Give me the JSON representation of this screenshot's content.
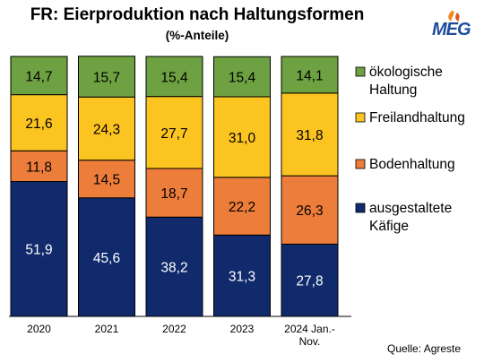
{
  "header": {
    "title": "FR: Eierproduktion nach Haltungsformen",
    "subtitle": "(%-Anteile)",
    "logo_text": "MEG"
  },
  "footer": {
    "source": "Quelle: Agreste"
  },
  "chart_data": {
    "type": "bar",
    "stacked": true,
    "categories": [
      "2020",
      "2021",
      "2022",
      "2023",
      "2024 Jan.-\nNov."
    ],
    "ylim": [
      0,
      100
    ],
    "grid": false,
    "legend_position": "right",
    "series": [
      {
        "name": "ausgestaltete Käfige",
        "color": "#112a6b",
        "values": [
          51.9,
          45.6,
          38.2,
          31.3,
          27.8
        ],
        "labels": [
          "51,9",
          "45,6",
          "38,2",
          "31,3",
          "27,8"
        ],
        "label_color": "#ffffff"
      },
      {
        "name": "Bodenhaltung",
        "color": "#ec7d3b",
        "values": [
          11.8,
          14.5,
          18.7,
          22.2,
          26.3
        ],
        "labels": [
          "11,8",
          "14,5",
          "18,7",
          "22,2",
          "26,3"
        ],
        "label_color": "#000000"
      },
      {
        "name": "Freilandhaltung",
        "color": "#fcc420",
        "values": [
          21.6,
          24.3,
          27.7,
          31.0,
          31.8
        ],
        "labels": [
          "21,6",
          "24,3",
          "27,7",
          "31,0",
          "31,8"
        ],
        "label_color": "#000000"
      },
      {
        "name": "ökologische Haltung",
        "color": "#6ea142",
        "values": [
          14.7,
          15.7,
          15.4,
          15.4,
          14.1
        ],
        "labels": [
          "14,7",
          "15,7",
          "15,4",
          "15,4",
          "14,1"
        ],
        "label_color": "#000000"
      }
    ],
    "legend_order": [
      3,
      2,
      1,
      0
    ],
    "legend_labels": {
      "3": [
        "ökologische",
        "Haltung"
      ],
      "2": [
        "Freilandhaltung"
      ],
      "1": [
        "Bodenhaltung"
      ],
      "0": [
        "ausgestaltete",
        "Käfige"
      ]
    }
  }
}
